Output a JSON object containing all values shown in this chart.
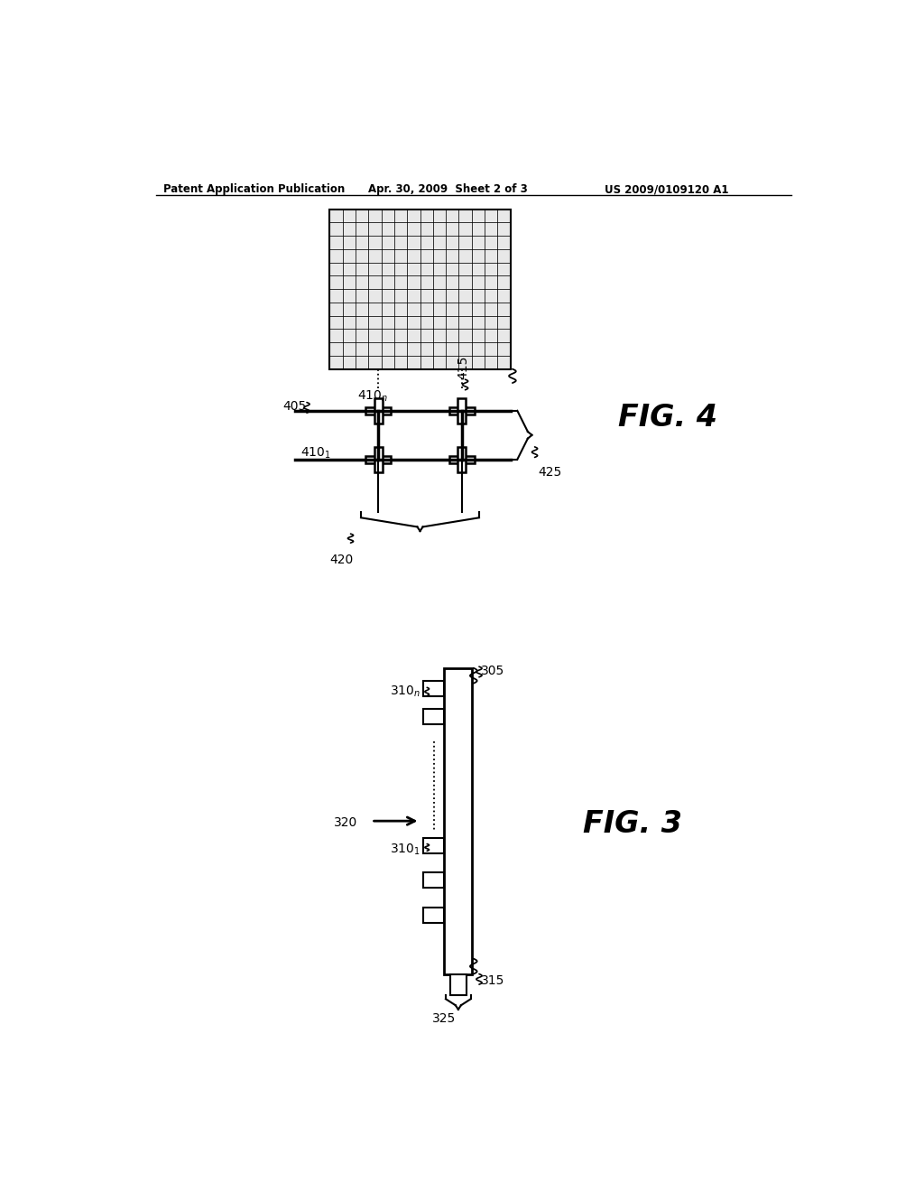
{
  "bg_color": "#ffffff",
  "header_text": "Patent Application Publication",
  "header_date": "Apr. 30, 2009  Sheet 2 of 3",
  "header_patent": "US 2009/0109120 A1",
  "fig4_label": "FIG. 4",
  "fig3_label": "FIG. 3"
}
